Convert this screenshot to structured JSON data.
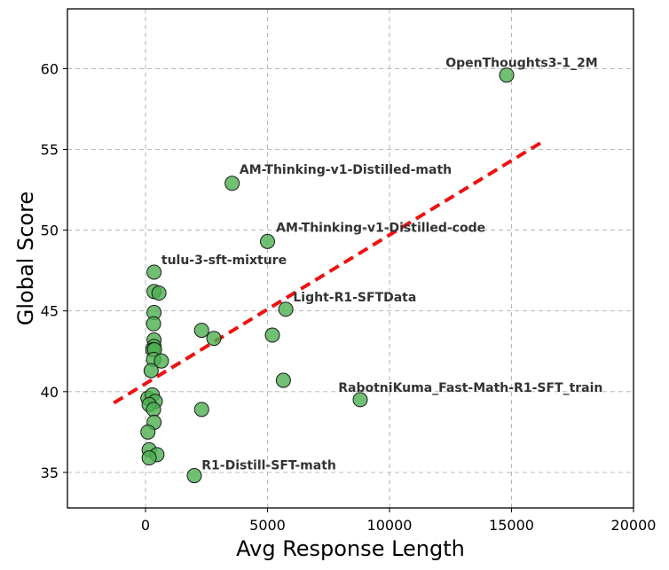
{
  "chart_data": {
    "type": "scatter",
    "title": "",
    "xlabel": "Avg Response Length",
    "ylabel": "Global Score",
    "xlim": [
      -3200,
      20000
    ],
    "ylim": [
      32.8,
      63.7
    ],
    "xticks": [
      0,
      5000,
      10000,
      15000,
      20000
    ],
    "yticks": [
      35,
      40,
      45,
      50,
      55,
      60
    ],
    "grid": true,
    "colors": {
      "point_fill": "#4caf50",
      "point_edge": "#1a1a1a",
      "trend_line": "#ee1111",
      "annotation": "#333333"
    },
    "trend_line": {
      "x": [
        -1300,
        16300
      ],
      "y": [
        39.3,
        55.5
      ]
    },
    "points": [
      {
        "x": 14800,
        "y": 59.6
      },
      {
        "x": 3550,
        "y": 52.9
      },
      {
        "x": 5000,
        "y": 49.3
      },
      {
        "x": 5750,
        "y": 45.1
      },
      {
        "x": 8800,
        "y": 39.5
      },
      {
        "x": 2000,
        "y": 34.8
      },
      {
        "x": 350,
        "y": 47.4
      },
      {
        "x": 350,
        "y": 46.2
      },
      {
        "x": 550,
        "y": 46.1
      },
      {
        "x": 350,
        "y": 44.9
      },
      {
        "x": 330,
        "y": 44.2
      },
      {
        "x": 350,
        "y": 43.2
      },
      {
        "x": 350,
        "y": 42.8
      },
      {
        "x": 300,
        "y": 42.6
      },
      {
        "x": 370,
        "y": 42.6
      },
      {
        "x": 330,
        "y": 42.0
      },
      {
        "x": 650,
        "y": 41.9
      },
      {
        "x": 230,
        "y": 41.3
      },
      {
        "x": 2300,
        "y": 43.8
      },
      {
        "x": 2800,
        "y": 43.3
      },
      {
        "x": 5200,
        "y": 43.5
      },
      {
        "x": 5650,
        "y": 40.7
      },
      {
        "x": 100,
        "y": 39.6
      },
      {
        "x": 280,
        "y": 39.8
      },
      {
        "x": 400,
        "y": 39.4
      },
      {
        "x": 150,
        "y": 39.2
      },
      {
        "x": 330,
        "y": 38.9
      },
      {
        "x": 2300,
        "y": 38.9
      },
      {
        "x": 350,
        "y": 38.1
      },
      {
        "x": 100,
        "y": 37.5
      },
      {
        "x": 150,
        "y": 36.4
      },
      {
        "x": 470,
        "y": 36.1
      },
      {
        "x": 150,
        "y": 35.9
      }
    ],
    "annotations": [
      {
        "text": "OpenThoughts3-1_2M",
        "x": 12300,
        "y": 60.1
      },
      {
        "text": "AM-Thinking-v1-Distilled-math",
        "x": 3850,
        "y": 53.5
      },
      {
        "text": "AM-Thinking-v1-Distilled-code",
        "x": 5350,
        "y": 49.9
      },
      {
        "text": "tulu-3-sft-mixture",
        "x": 650,
        "y": 47.9
      },
      {
        "text": "Light-R1-SFTData",
        "x": 6050,
        "y": 45.6
      },
      {
        "text": "RabotniKuma_Fast-Math-R1-SFT_train",
        "x": 7900,
        "y": 40.0
      },
      {
        "text": "R1-Distill-SFT-math",
        "x": 2300,
        "y": 35.2
      }
    ]
  }
}
